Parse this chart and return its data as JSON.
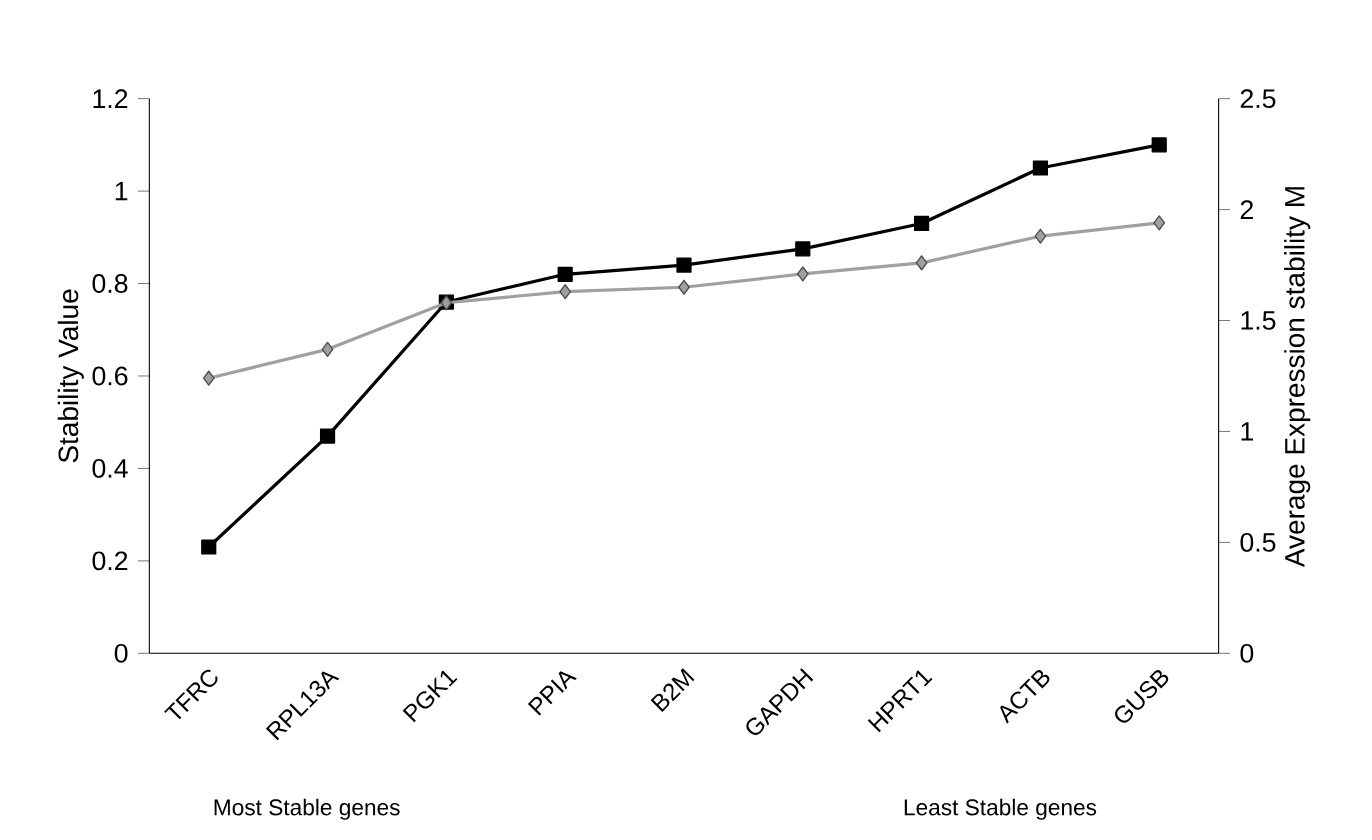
{
  "chart_data": {
    "type": "line",
    "ylabel": "Stability Value",
    "y2label": "Average Expression stability M",
    "categories": [
      "TFRC",
      "RPL13A",
      "PGK1",
      "PPIA",
      "B2M",
      "GAPDH",
      "HPRT1",
      "ACTB",
      "GUSB"
    ],
    "series": [
      {
        "color": "#000000",
        "marker": "square",
        "values": [
          0.23,
          0.47,
          0.76,
          0.82,
          0.84,
          0.875,
          0.93,
          1.05,
          1.1
        ]
      },
      {
        "color": "#a0a0a0",
        "marker": "diamond",
        "axis": "y2",
        "values": [
          1.24,
          1.37,
          1.58,
          1.63,
          1.65,
          1.71,
          1.76,
          1.88,
          1.94
        ]
      }
    ],
    "ylim": [
      0,
      1.2
    ],
    "yticks": [
      0,
      0.2,
      0.4,
      0.6,
      0.8,
      1,
      1.2
    ],
    "y2lim": [
      0,
      2.5
    ],
    "y2ticks": [
      0,
      0.5,
      1,
      1.5,
      2,
      2.5
    ],
    "annotations": [
      "Most Stable genes",
      "Least Stable genes"
    ]
  }
}
